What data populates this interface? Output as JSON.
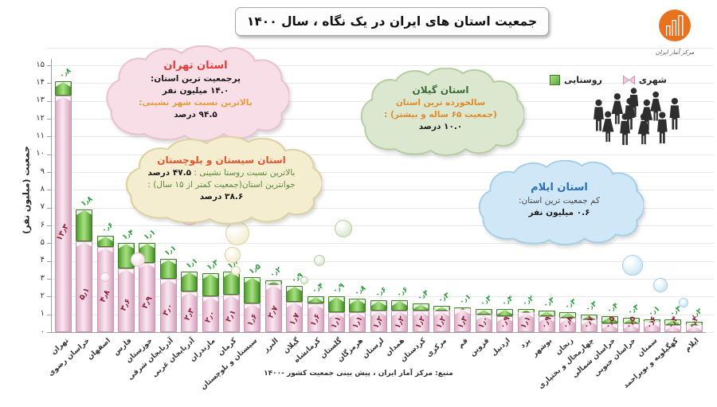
{
  "title": "جمعیت استان های ایران در یک نگاه ، سال ۱۴۰۰",
  "logo": {
    "label": "مرکز آمار ایران",
    "color": "#e8721f"
  },
  "legend": {
    "items": [
      {
        "key": "rural",
        "label": "روستایی"
      },
      {
        "key": "urban",
        "label": "شهری"
      }
    ]
  },
  "y_axis": {
    "title": "جمعیت (میلیون نفر)",
    "ticks": [
      "۰",
      "۱",
      "۲",
      "۳",
      "۴",
      "۵",
      "۶",
      "۷",
      "۸",
      "۹",
      "۱۰",
      "۱۱",
      "۱۲",
      "۱۳",
      "۱۴",
      "۱۵"
    ]
  },
  "source": "منبع: مرکز آمار ایران ، پیش بینی جمعیت کشور -۱۴۰۰",
  "callouts": [
    {
      "id": "tehran",
      "fill": "#f8dfe7",
      "stroke": "#e9c3cf",
      "lines": [
        [
          {
            "text": "استان تهران",
            "color": "#e03a3a",
            "bold": true,
            "size": 13
          }
        ],
        [
          {
            "text": "پرجمعیت ترین استان:",
            "color": "#1a1a1a",
            "bold": true
          }
        ],
        [
          {
            "text": "۱۴.۰ میلیون نفر",
            "color": "#1a1a1a",
            "bold": true
          }
        ],
        [
          {
            "text": "بالاترین نسبت شهر نشینی:",
            "color": "#e69a3a",
            "bold": true
          }
        ],
        [
          {
            "text": "۹۴.۵ درصد",
            "color": "#1a1a1a",
            "bold": true
          }
        ]
      ]
    },
    {
      "id": "sistan",
      "fill": "#f4edcf",
      "stroke": "#ddd2a4",
      "lines": [
        [
          {
            "text": "استان سیستان و بلوچستان",
            "color": "#e0552f",
            "bold": true,
            "size": 12
          }
        ],
        [
          {
            "text": "بالاترین نسبت روستا نشینی : ",
            "color": "#5a8a3c",
            "bold": false
          },
          {
            "text": "۴۷.۵ درصد",
            "color": "#1a1a1a",
            "bold": true
          }
        ],
        [
          {
            "text": "جوانترین استان(جمعیت کمتر از ۱۵ سال) :",
            "color": "#5a8a3c",
            "bold": false
          }
        ],
        [
          {
            "text": "۳۸.۶ درصد",
            "color": "#1a1a1a",
            "bold": true
          }
        ]
      ]
    },
    {
      "id": "gilan",
      "fill": "#dbe7cf",
      "stroke": "#b5cda1",
      "lines": [
        [
          {
            "text": "استان گیلان",
            "color": "#3a6b35",
            "bold": true,
            "size": 12
          }
        ],
        [
          {
            "text": "سالخورده ترین استان",
            "color": "#e08a2a",
            "bold": true
          }
        ],
        [
          {
            "text": "(جمعیت ۶۵ ساله و بیشتر) :",
            "color": "#e08a2a",
            "bold": true
          }
        ],
        [
          {
            "text": "۱۰.۰ درصد",
            "color": "#1a1a1a",
            "bold": true
          }
        ]
      ]
    },
    {
      "id": "ilam",
      "fill": "#cfe7f6",
      "stroke": "#a5cee7",
      "lines": [
        [
          {
            "text": "استان ایلام",
            "color": "#2e6fb5",
            "bold": true,
            "size": 13
          }
        ],
        [
          {
            "text": "کم جمعیت ترین استان:",
            "color": "#4a4a4a",
            "bold": false
          }
        ],
        [
          {
            "text": "۰.۶ میلیون نفر",
            "color": "#1a1a1a",
            "bold": true
          }
        ]
      ]
    }
  ],
  "chart_data": {
    "type": "bar",
    "stacked": true,
    "title": "جمعیت استان های ایران در یک نگاه ، سال ۱۴۰۰",
    "ylabel": "جمعیت (میلیون نفر)",
    "ylim": [
      0,
      15
    ],
    "grid": true,
    "legend_position": "top-right",
    "number_style": "persian-digits",
    "categories": [
      "تهران",
      "خراسان رضوی",
      "اصفهان",
      "فارس",
      "خوزستان",
      "آذربایجان شرقی",
      "آذربایجان غربی",
      "مازندران",
      "کرمان",
      "سیستان و بلوچستان",
      "البرز",
      "گیلان",
      "کرمانشاه",
      "گلستان",
      "هرمزگان",
      "لرستان",
      "همدان",
      "کردستان",
      "مرکزی",
      "قم",
      "قزوین",
      "اردبیل",
      "یزد",
      "بوشهر",
      "زنجان",
      "چهارمحال و بختیاری",
      "خراسان شمالی",
      "خراسان جنوبی",
      "سمنان",
      "کهگیلویه و بویراحمد",
      "ایلام"
    ],
    "series": [
      {
        "name": "شهری",
        "values": [
          13.3,
          5.1,
          4.8,
          3.6,
          3.9,
          3.0,
          2.3,
          2.0,
          2.1,
          1.6,
          2.7,
          1.7,
          1.6,
          1.1,
          1.1,
          1.2,
          1.2,
          1.2,
          1.2,
          1.3,
          1.0,
          0.9,
          1.1,
          0.9,
          0.8,
          0.7,
          0.5,
          0.5,
          0.6,
          0.4,
          0.4
        ]
      },
      {
        "name": "روستایی",
        "values": [
          0.8,
          1.8,
          0.6,
          1.4,
          1.1,
          1.1,
          1.1,
          1.3,
          1.3,
          1.5,
          0.2,
          0.9,
          0.4,
          0.9,
          0.8,
          0.6,
          0.6,
          0.4,
          0.3,
          0.1,
          0.3,
          0.4,
          0.2,
          0.3,
          0.3,
          0.3,
          0.4,
          0.3,
          0.1,
          0.3,
          0.2
        ]
      }
    ]
  }
}
